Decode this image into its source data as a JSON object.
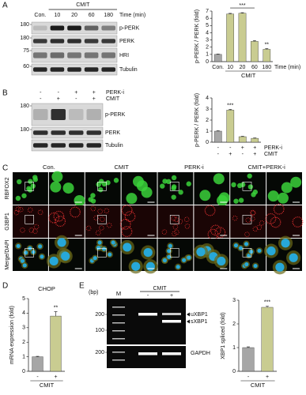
{
  "panel_labels": [
    "A",
    "B",
    "C",
    "D",
    "E"
  ],
  "blot_a": {
    "header": "CMIT",
    "time_label": "Time (min)",
    "lanes": [
      "Con.",
      "10",
      "20",
      "60",
      "180"
    ],
    "rows": [
      {
        "label": "p-PERK",
        "marker": "180"
      },
      {
        "label": "PERK",
        "marker": "180"
      },
      {
        "label": "HRI",
        "marker": "75"
      },
      {
        "label": "Tubulin",
        "marker": "60"
      }
    ]
  },
  "blot_b": {
    "conditions": [
      {
        "name": "PERK-i",
        "values": [
          "-",
          "-",
          "+",
          "+"
        ]
      },
      {
        "name": "CMIT",
        "values": [
          "-",
          "+",
          "-",
          "+"
        ]
      }
    ],
    "rows": [
      {
        "label": "p-PERK",
        "marker": "180"
      },
      {
        "label": "PERK",
        "marker": "180"
      },
      {
        "label": "Tubulin",
        "marker": null
      }
    ]
  },
  "microscopy": {
    "columns": [
      "Con.",
      "CMIT",
      "PERK-i",
      "CMIT+PERK-i"
    ],
    "rows": [
      "RBFOX2",
      "G3BP1",
      "Merge/DAPI"
    ]
  },
  "gel": {
    "unit": "(bp)",
    "marker_lane": "M",
    "header": "CMIT",
    "lanes": [
      "-",
      "+"
    ],
    "markers": [
      "200",
      "100",
      "200"
    ],
    "bands": [
      "uXBP1",
      "sXBP1",
      "GAPDH"
    ]
  },
  "chart_data": [
    {
      "type": "bar",
      "ylabel": "p-PERK / PERK (fold)",
      "categories": [
        "Con.",
        "10",
        "20",
        "60",
        "180"
      ],
      "values": [
        1,
        6.6,
        6.7,
        2.8,
        1.7
      ],
      "errors": [
        0.05,
        0.08,
        0.07,
        0.1,
        0.1
      ],
      "colors": [
        "#a6a6a6",
        "#c9cc91",
        "#c9cc91",
        "#c9cc91",
        "#c9cc91"
      ],
      "ylim": [
        0,
        7
      ],
      "yticks": [
        0,
        1,
        2,
        3,
        4,
        5,
        6,
        7
      ],
      "xlabel": "CMIT",
      "xlabel_from": 1,
      "x_suffix": "Time (min)",
      "annotations": [
        {
          "text": "***",
          "from": 1,
          "to": 3
        },
        {
          "text": "**",
          "from": 4,
          "to": 4
        }
      ]
    },
    {
      "type": "bar",
      "ylabel": "p-PERK / PERK (fold)",
      "categories": [
        null,
        null,
        null,
        null
      ],
      "values": [
        1,
        2.9,
        0.5,
        0.35
      ],
      "errors": [
        0.03,
        0.06,
        0.03,
        0.03
      ],
      "colors": [
        "#a6a6a6",
        "#c9cc91",
        "#c9cc91",
        "#c9cc91"
      ],
      "ylim": [
        0,
        4
      ],
      "yticks": [
        0,
        1,
        2,
        3,
        4
      ],
      "x_rows": [
        {
          "name": "PERK-i",
          "values": [
            "-",
            "-",
            "+",
            "+"
          ]
        },
        {
          "name": "CMIT",
          "values": [
            "-",
            "+",
            "-",
            "+"
          ]
        }
      ],
      "annotations": [
        {
          "text": "***",
          "from": 1,
          "to": 1
        }
      ]
    },
    {
      "type": "bar",
      "title": "CHOP",
      "ylabel": "mRNA expression (fold)",
      "categories": [
        "-",
        "+"
      ],
      "values": [
        1,
        3.8
      ],
      "errors": [
        0.03,
        0.3
      ],
      "colors": [
        "#a6a6a6",
        "#c9cc91"
      ],
      "ylim": [
        0,
        5
      ],
      "yticks": [
        0,
        1,
        2,
        3,
        4,
        5
      ],
      "xlabel": "CMIT",
      "xlabel_from": 0,
      "annotations": [
        {
          "text": "**",
          "from": 1,
          "to": 1
        }
      ]
    },
    {
      "type": "bar",
      "ylabel": "XBP1 spliced (fold)",
      "categories": [
        "-",
        "+"
      ],
      "values": [
        1,
        2.7
      ],
      "errors": [
        0.03,
        0.05
      ],
      "colors": [
        "#a6a6a6",
        "#c9cc91"
      ],
      "ylim": [
        0,
        3
      ],
      "yticks": [
        0,
        1,
        2,
        3
      ],
      "xlabel": "CMIT",
      "xlabel_from": 0,
      "annotations": [
        {
          "text": "***",
          "from": 1,
          "to": 1
        }
      ]
    }
  ]
}
